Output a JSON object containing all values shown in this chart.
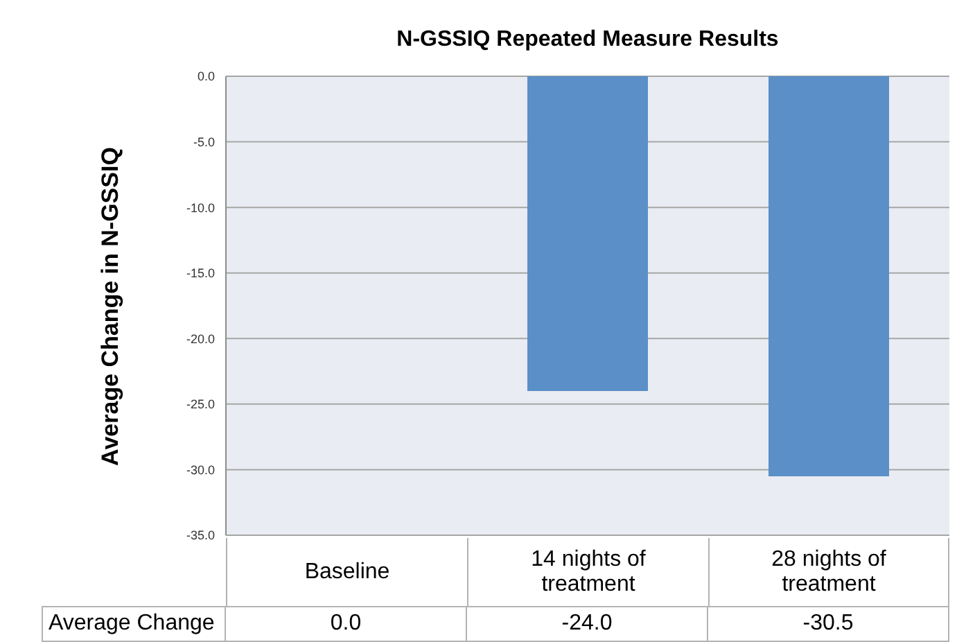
{
  "chart_data": {
    "type": "bar",
    "title": "N-GSSIQ Repeated Measure Results",
    "ylabel": "Average Change in N-GSSIQ",
    "categories": [
      "Baseline",
      "14 nights of treatment",
      "28 nights of treatment"
    ],
    "series": [
      {
        "name": "Average Change",
        "color": "#5b8fc7",
        "values": [
          0,
          -24,
          -30.5
        ],
        "value_labels": [
          "0.0",
          "-24.0",
          "-30.5"
        ]
      }
    ],
    "ylim": [
      -35,
      0
    ],
    "yticks": [
      {
        "value": 0,
        "label": "0.0"
      },
      {
        "value": -5,
        "label": "-5.0"
      },
      {
        "value": -10,
        "label": "-10.0"
      },
      {
        "value": -15,
        "label": "-15.0"
      },
      {
        "value": -20,
        "label": "-20.0"
      },
      {
        "value": -25,
        "label": "-25.0"
      },
      {
        "value": -30,
        "label": "-30.0"
      },
      {
        "value": -35,
        "label": "-35.0"
      }
    ],
    "grid": "y"
  }
}
